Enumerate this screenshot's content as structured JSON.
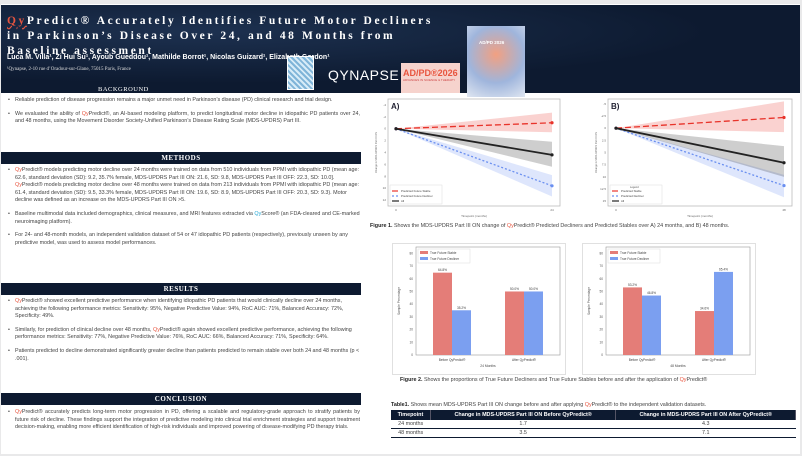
{
  "header": {
    "title_qy": "Qy",
    "title_rest": "Predict® Accurately Identifies Future Motor Decliners in Parkinson’s Disease Over 24, and 48 Months from Baseline assessment",
    "authors": "Luca M. Villa¹, Zi Hui Su¹, Ayoub Gueddou¹, Mathilde Borrot¹, Nicolas Guizard¹, Elizabeth Gordon¹",
    "affiliation": "¹Qynapse, 2-10 rue d’Oradour-sur-Glane, 75015 Paris, France",
    "qynapse_logo": "QYNAPSE",
    "adpd_logo": "AD/PD®2026",
    "adpd_tag": "ADVANCES IN SCIENCE & THERAPY",
    "brain_text": "AD/PD 2026"
  },
  "sections": {
    "background": "BACKGROUND",
    "methods": "METHODS",
    "results": "RESULTS",
    "conclusion": "CONCLUSION"
  },
  "background": [
    "Reliable prediction of disease progression remains a major unmet need in Parkinson’s disease (PD) clinical research and trial design.",
    "an AI-based modeling platform, to predict longitudinal motor decline in idiopathic PD patients over 24, and 48 months, using the Movement Disorder Society-Unified Parkinson’s Disease Rating Scale (MDS-UPDRS) Part III."
  ],
  "background_pre": "We evaluated the ability of ",
  "qy": "Qy",
  "predict": "Predict®",
  "score": "Score®",
  "methods": {
    "m1a": " models predicting motor decline over 24 months were trained on data from 510 individuals from PPMI with idiopathic PD (mean age: 62.6, standard deviation (SD): 9.2, 35.7% female, MDS-UPDRS Part III ON: 21.6, SD: 9.8, MDS-UPDRS Part III OFF: 22.3, SD: 10.0]. ",
    "m1b": " models predicting motor decline over 48 months were trained on data from 213 individuals from PPMI with idiopathic PD (mean age: 61.4, standard deviation (SD): 9.5, 33.3% female, MDS-UPDRS Part III ON: 19.6, SD: 8.9, MDS-UPDRS Part III OFF: 20.3, SD: 9.3). Motor decline was defined as an increase on the MDS-UPDRS Part III ON >5.",
    "m2a": "Baseline multimodal data included demographics, clinical measures, and MRI features extracted via ",
    "m2b": " (an FDA-cleared and CE-marked neuroimaging platform).",
    "m3": "For 24- and 48-month models, an independent validation dataset of 54 or 47 idiopathic PD patients (respectively), previously unseen by any predictive model, was used to assess model performances."
  },
  "results": {
    "r1": " showed excellent predictive performance when identifying idiopathic PD patients that would clinically decline over 24 months, achieving the following performance metrics: Sensitivity: 95%, Negative Predictive Value: 94%, RoC AUC: 71%, Balanced Accuracy: 72%, Specificity: 49%.",
    "r2a": "Similarly, for prediction of clinical decline over 48 months, ",
    "r2b": " again showed excellent predictive performance, achieving the following performance metrics: Sensitivity: 77%, Negative Predictive Value: 76%, RoC AUC: 66%, Balanced Accuracy: 71%, Specificity: 64%.",
    "r3": "Patients predicted to decline demonstrated significantly greater decline than patients predicted to remain stable over both 24 and 48 months (p < .001)."
  },
  "conclusion": " accurately predicts long-term motor progression in PD, offering a scalable and regulatory-grade approach to stratify patients by future risk of decline. These findings support the integration of predictive modeling into clinical trial enrichment strategies and support treatment decision-making, enabling more efficient identification of high-risk individuals and improved powering of disease-modifying PD therapy trials.",
  "fig1": {
    "label": "Figure 1.",
    "pre": " Shows the MDS-UPDRS Part III ON change of ",
    "post": " Predicted Decliners and Predicted Stables over A) 24 months, and B) 48 months."
  },
  "fig2": {
    "label": "Figure 2.",
    "pre": " Shows the proportions of True Future Decliners and True Future Stables before and after the application of "
  },
  "table": {
    "label": "Table1.",
    "pre": " Shows mean MDS-UPDRS Part III ON change before and after applying ",
    "post": " to the independent validation datasets.",
    "headers": [
      "Timepoint",
      "Change in MDS-UPDRS Part III ON Before QyPredict®",
      "Change in MDS-UPDRS Part III ON After QyPredict®"
    ],
    "rows": [
      [
        "24 months",
        "1.7",
        "4.3"
      ],
      [
        "48 months",
        "3.5",
        "7.1"
      ]
    ]
  },
  "chart_data": [
    {
      "type": "line",
      "panel": "A)",
      "xlabel": "Timepoint (months)",
      "ylabel": "Change in MDS-UPDRS Part III ON",
      "x": [
        0,
        24
      ],
      "ylim": [
        -5,
        13
      ],
      "yticks": [
        -4,
        -2,
        0,
        2,
        4,
        6,
        8,
        10,
        12
      ],
      "inverted": true,
      "legend": "bottom-left",
      "series": [
        {
          "name": "Predicted Future Stable",
          "color": "#e8332a",
          "dash": "6,3",
          "values": [
            0,
            -1.0
          ],
          "ci_end": [
            -2.7,
            0.6
          ]
        },
        {
          "name": "Predicted Future Decliner",
          "color": "#6a8ff0",
          "dash": "2,2",
          "values": [
            0,
            9.6
          ],
          "ci_end": [
            7.8,
            11.4
          ]
        },
        {
          "name": "All",
          "color": "#222222",
          "dash": "",
          "values": [
            0,
            4.4
          ],
          "ci_end": [
            2.2,
            6.4
          ]
        }
      ]
    },
    {
      "type": "line",
      "panel": "B)",
      "xlabel": "Timepoint (months)",
      "ylabel": "Change in MDS-UPDRS Part III ON",
      "x": [
        0,
        48
      ],
      "ylim": [
        -6,
        16
      ],
      "yticks": [
        -5.0,
        -2.5,
        0.0,
        2.5,
        5.0,
        7.5,
        10.0,
        12.5,
        15.0
      ],
      "inverted": true,
      "legend": "bottom-left",
      "legend_title": "Legend",
      "series": [
        {
          "name": "Predicted Stable",
          "color": "#e8332a",
          "dash": "6,3",
          "values": [
            0,
            -2.2
          ],
          "ci_end": [
            -5.5,
            0.8
          ]
        },
        {
          "name": "Predicted Decliner",
          "color": "#6a8ff0",
          "dash": "2,2",
          "values": [
            0,
            11.8
          ],
          "ci_end": [
            9.6,
            14.2
          ]
        },
        {
          "name": "All",
          "color": "#222222",
          "dash": "",
          "values": [
            0,
            7.1
          ],
          "ci_end": [
            3.7,
            10.0
          ]
        }
      ]
    },
    {
      "type": "bar",
      "xlabel": "24 Months",
      "ylabel": "Sample Percentage",
      "ylim": [
        0,
        85
      ],
      "yticks": [
        0,
        10,
        20,
        30,
        40,
        50,
        60,
        70,
        80
      ],
      "categories": [
        "Before QyPredict®",
        "After QyPredict®"
      ],
      "legend": "top-left",
      "series": [
        {
          "name": "True Future Stable",
          "color": "#e47d78",
          "values": [
            64.8,
            50.0
          ],
          "labels": [
            "64.8%",
            "50.0%"
          ]
        },
        {
          "name": "True Future Decliner",
          "color": "#7b9ff0",
          "values": [
            35.2,
            50.0
          ],
          "labels": [
            "35.2%",
            "50.0%"
          ]
        }
      ]
    },
    {
      "type": "bar",
      "xlabel": "48 Months",
      "ylabel": "Sample Percentage",
      "ylim": [
        0,
        85
      ],
      "yticks": [
        0,
        10,
        20,
        30,
        40,
        50,
        60,
        70,
        80
      ],
      "categories": [
        "Before QyPredict®",
        "After QyPredict®"
      ],
      "legend": "top-left",
      "series": [
        {
          "name": "True Future Stable",
          "color": "#e47d78",
          "values": [
            53.2,
            34.6
          ],
          "labels": [
            "53.2%",
            "34.6%"
          ]
        },
        {
          "name": "True Future Decliner",
          "color": "#7b9ff0",
          "values": [
            46.8,
            65.4
          ],
          "labels": [
            "46.8%",
            "65.4%"
          ]
        }
      ]
    }
  ]
}
